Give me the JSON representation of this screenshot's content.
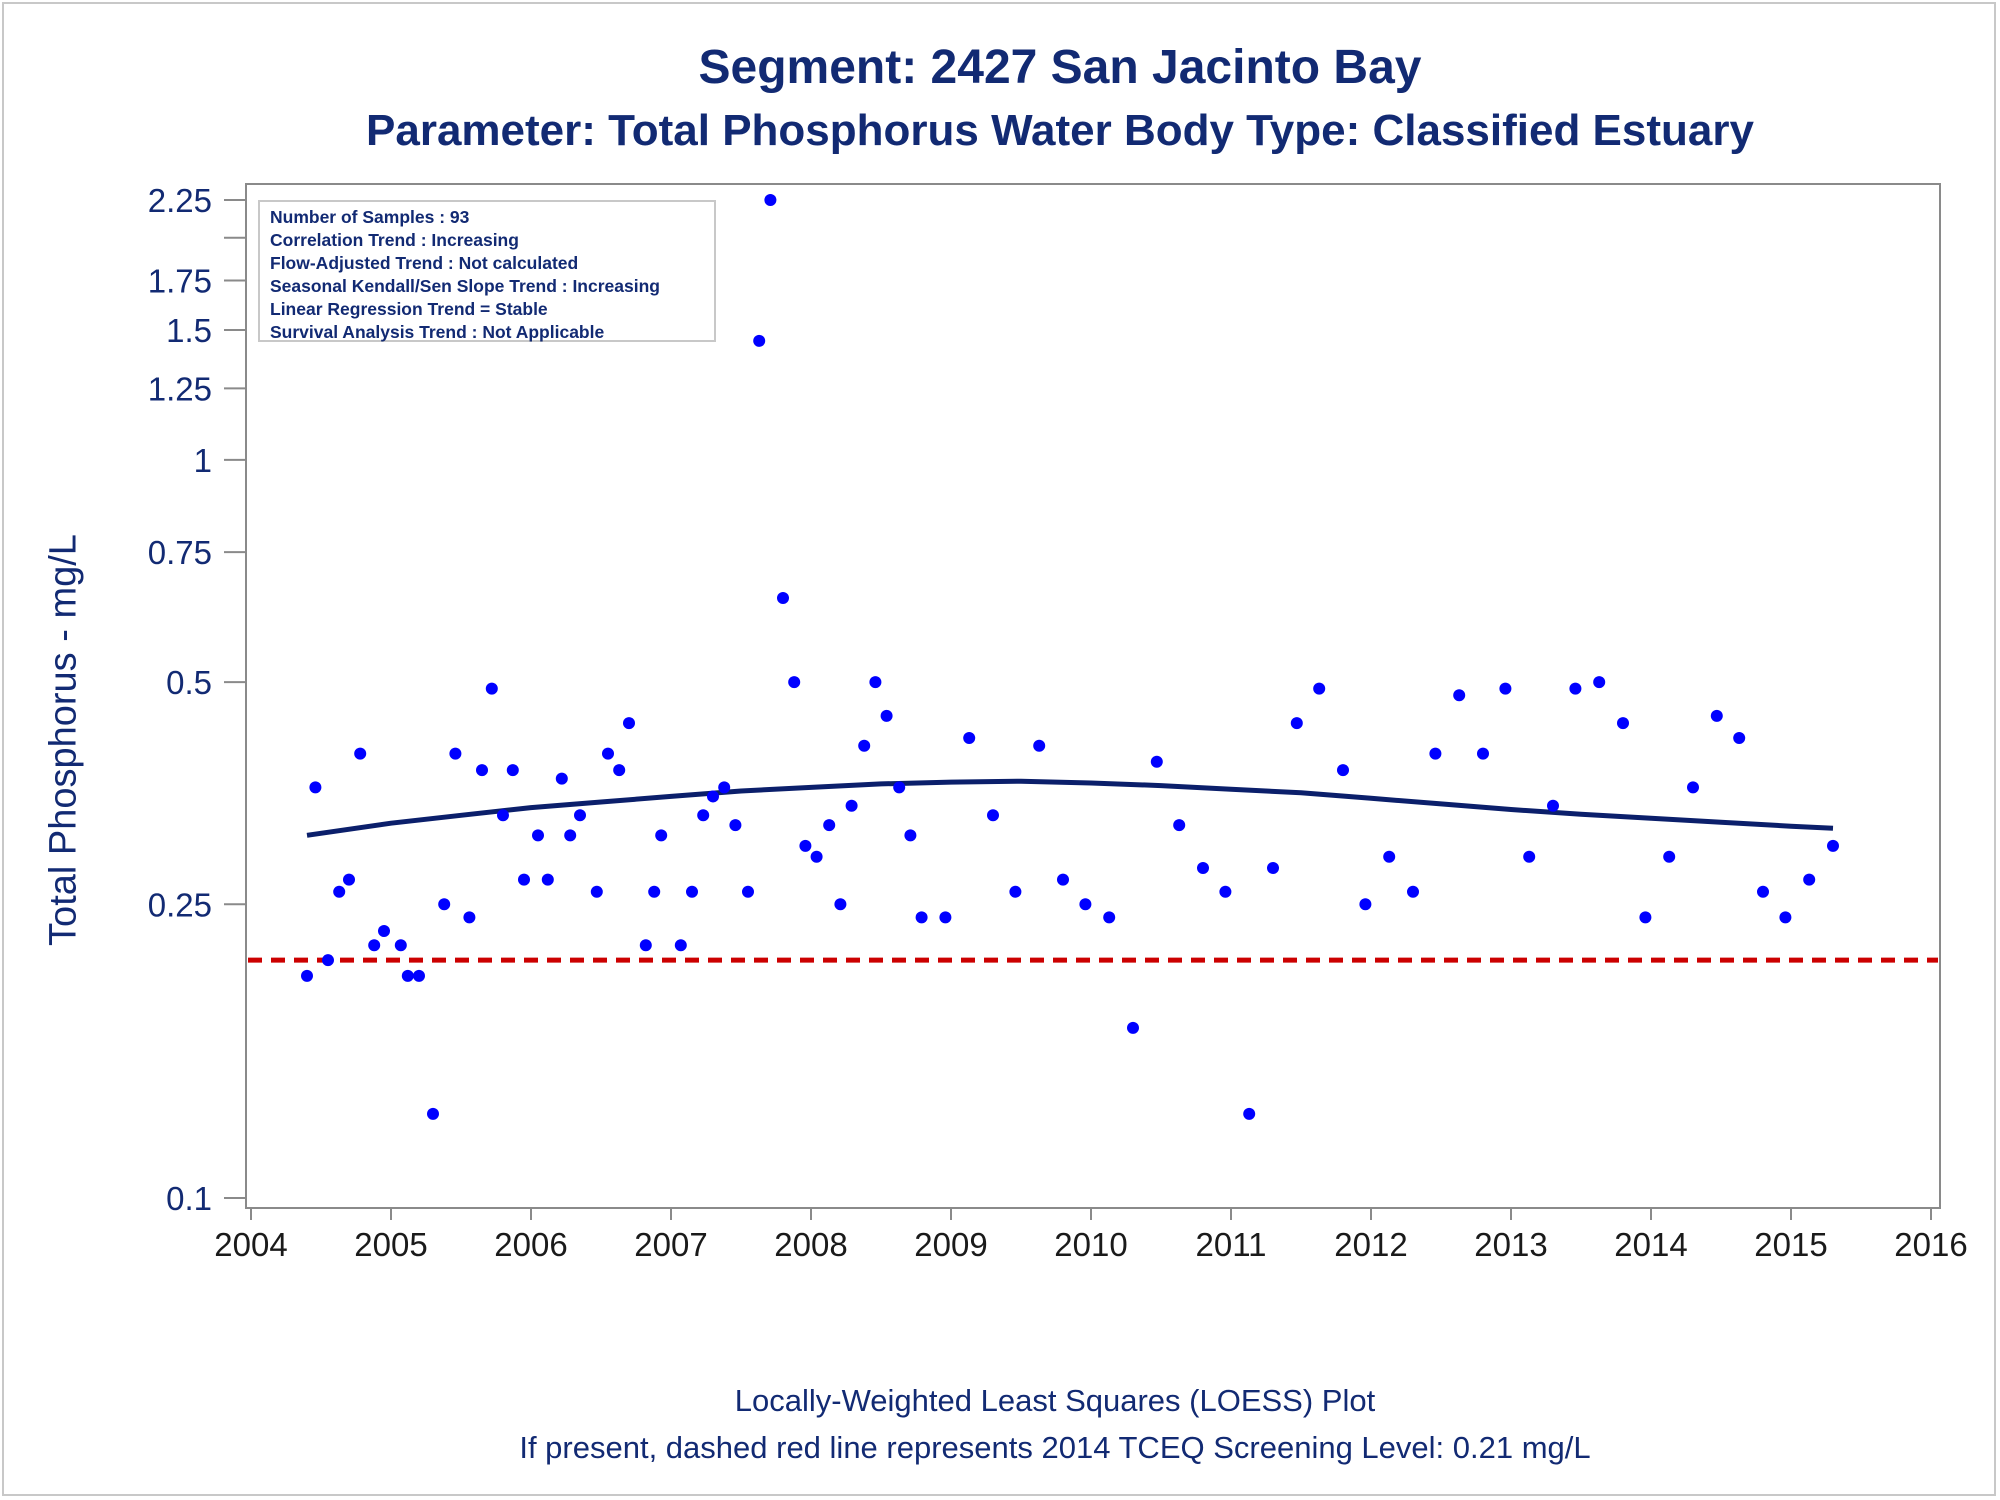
{
  "titles": {
    "line1": "Segment: 2427  San Jacinto Bay",
    "line2": "Parameter: Total Phosphorus   Water Body Type: Classified Estuary"
  },
  "footnotes": {
    "line1": "Locally-Weighted Least Squares (LOESS) Plot",
    "line2": "If present, dashed red line represents 2014 TCEQ Screening Level: 0.21 mg/L"
  },
  "stats_box": {
    "lines": [
      "Number of Samples : 93",
      "Correlation Trend : Increasing",
      "Flow-Adjusted Trend : Not calculated",
      "Seasonal Kendall/Sen Slope Trend : Increasing",
      "Linear Regression Trend = Stable",
      "Survival Analysis Trend : Not Applicable"
    ]
  },
  "colors": {
    "text": "#122a73",
    "points": "#0000ff",
    "loess": "#0b1f6b",
    "screening_line": "#cc0000",
    "axis": "#8a8a8a"
  },
  "chart_data": {
    "type": "scatter",
    "title": "Segment: 2427  San Jacinto Bay",
    "subtitle": "Parameter: Total Phosphorus   Water Body Type: Classified Estuary",
    "xlabel": "",
    "ylabel": "Total Phosphorus - mg/L",
    "x_scale": "linear",
    "y_scale": "log",
    "xlim": [
      2004,
      2016
    ],
    "ylim": [
      0.1,
      2.25
    ],
    "x_ticks": [
      2004,
      2005,
      2006,
      2007,
      2008,
      2009,
      2010,
      2011,
      2012,
      2013,
      2014,
      2015,
      2016
    ],
    "y_ticks": [
      0.1,
      0.25,
      0.5,
      0.75,
      1,
      1.25,
      1.5,
      1.75,
      2.25
    ],
    "y_tick_labels": [
      "0.1",
      "0.25",
      "0.5",
      "0.75",
      "1",
      "1.25",
      "1.5",
      "1.75",
      "2.25"
    ],
    "grid": false,
    "series": [
      {
        "type": "scatter",
        "x": [
          2004.4,
          2004.46,
          2004.55,
          2004.63,
          2004.7,
          2004.78,
          2004.88,
          2004.95,
          2005.07,
          2005.12,
          2005.2,
          2005.3,
          2005.38,
          2005.46,
          2005.56,
          2005.65,
          2005.72,
          2005.8,
          2005.87,
          2005.95,
          2006.05,
          2006.12,
          2006.22,
          2006.28,
          2006.35,
          2006.47,
          2006.55,
          2006.63,
          2006.7,
          2006.82,
          2006.88,
          2006.93,
          2007.07,
          2007.15,
          2007.23,
          2007.3,
          2007.38,
          2007.46,
          2007.55,
          2007.63,
          2007.71,
          2007.8,
          2007.88,
          2007.96,
          2008.04,
          2008.13,
          2008.21,
          2008.29,
          2008.38,
          2008.46,
          2008.54,
          2008.63,
          2008.71,
          2008.79,
          2008.96,
          2009.13,
          2009.3,
          2009.46,
          2009.63,
          2009.8,
          2009.96,
          2010.13,
          2010.3,
          2010.47,
          2010.63,
          2010.8,
          2010.96,
          2011.13,
          2011.3,
          2011.47,
          2011.63,
          2011.8,
          2011.96,
          2012.13,
          2012.3,
          2012.46,
          2012.63,
          2012.8,
          2012.96,
          2013.13,
          2013.3,
          2013.46,
          2013.63,
          2013.8,
          2013.96,
          2014.13,
          2014.3,
          2014.47,
          2014.63,
          2014.8,
          2014.96,
          2015.13,
          2015.3
        ],
        "y": [
          0.2,
          0.36,
          0.21,
          0.26,
          0.27,
          0.4,
          0.22,
          0.23,
          0.22,
          0.2,
          0.2,
          0.13,
          0.25,
          0.4,
          0.24,
          0.38,
          0.49,
          0.33,
          0.38,
          0.27,
          0.31,
          0.27,
          0.37,
          0.31,
          0.33,
          0.26,
          0.4,
          0.38,
          0.44,
          0.22,
          0.26,
          0.31,
          0.22,
          0.26,
          0.33,
          0.35,
          0.36,
          0.32,
          0.26,
          1.45,
          2.25,
          0.65,
          0.5,
          0.3,
          0.29,
          0.32,
          0.25,
          0.34,
          0.41,
          0.5,
          0.45,
          0.36,
          0.31,
          0.24,
          0.24,
          0.42,
          0.33,
          0.26,
          0.41,
          0.27,
          0.25,
          0.24,
          0.17,
          0.39,
          0.32,
          0.28,
          0.26,
          0.13,
          0.28,
          0.44,
          0.49,
          0.38,
          0.25,
          0.29,
          0.26,
          0.4,
          0.48,
          0.4,
          0.49,
          0.29,
          0.34,
          0.49,
          0.5,
          0.44,
          0.24,
          0.29,
          0.36,
          0.45,
          0.42,
          0.26,
          0.24,
          0.27,
          0.3
        ]
      },
      {
        "name": "LOESS",
        "type": "line",
        "x": [
          2004.4,
          2005.0,
          2005.5,
          2006.0,
          2006.5,
          2007.0,
          2007.5,
          2008.0,
          2008.5,
          2009.0,
          2009.5,
          2010.0,
          2010.5,
          2011.0,
          2011.5,
          2012.0,
          2012.5,
          2013.0,
          2013.5,
          2014.0,
          2014.5,
          2015.0,
          2015.3
        ],
        "y": [
          0.31,
          0.322,
          0.33,
          0.338,
          0.344,
          0.35,
          0.356,
          0.36,
          0.364,
          0.366,
          0.367,
          0.365,
          0.362,
          0.358,
          0.354,
          0.348,
          0.342,
          0.336,
          0.331,
          0.327,
          0.323,
          0.319,
          0.317
        ]
      },
      {
        "name": "2014 TCEQ Screening Level",
        "type": "hline",
        "y": 0.21
      }
    ]
  }
}
